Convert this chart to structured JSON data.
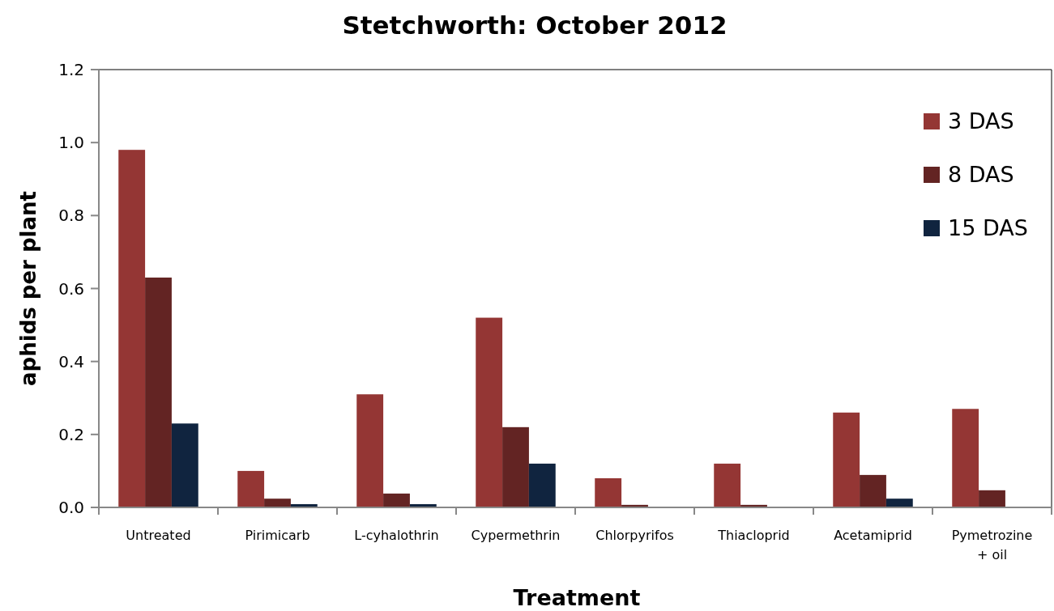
{
  "chart_data": {
    "type": "bar",
    "title": "Stetchworth: October 2012",
    "xlabel": "Treatment",
    "ylabel": "aphids per plant",
    "categories": [
      "Untreated",
      "Pirimicarb",
      "L-cyhalothrin",
      "Cypermethrin",
      "Chlorpyrifos",
      "Thiacloprid",
      "Acetamiprid",
      "Pymetrozine\n+ oil"
    ],
    "series": [
      {
        "name": "3 DAS",
        "color": "#943634",
        "values": [
          0.98,
          0.1,
          0.31,
          0.52,
          0.08,
          0.12,
          0.26,
          0.27
        ]
      },
      {
        "name": "8 DAS",
        "color": "#632423",
        "values": [
          0.63,
          0.024,
          0.038,
          0.22,
          0.007,
          0.007,
          0.089,
          0.047
        ]
      },
      {
        "name": "15 DAS",
        "color": "#10243f",
        "values": [
          0.23,
          0.009,
          0.009,
          0.12,
          0,
          0,
          0.024,
          0
        ]
      }
    ],
    "ylim": [
      0,
      1.2
    ],
    "yticks": [
      {
        "value": 0,
        "label": "0.0"
      },
      {
        "value": 0.2,
        "label": "0.2"
      },
      {
        "value": 0.4,
        "label": "0.4"
      },
      {
        "value": 0.6,
        "label": "0.6"
      },
      {
        "value": 0.8,
        "label": "0.8"
      },
      {
        "value": 1,
        "label": "1.0"
      },
      {
        "value": 1.2,
        "label": "1.2"
      }
    ],
    "grid": false,
    "legend": "top right"
  }
}
